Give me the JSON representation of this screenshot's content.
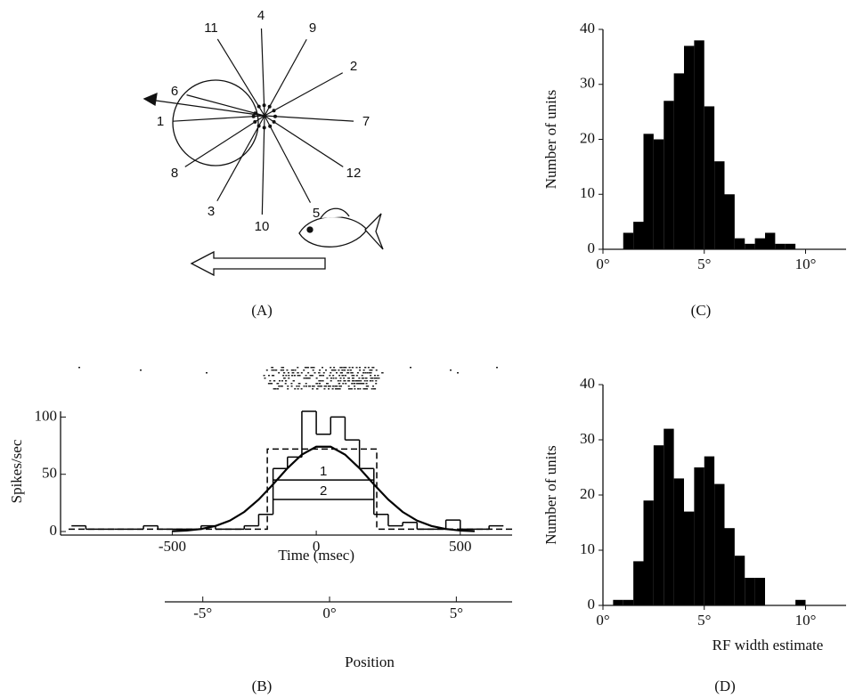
{
  "panel_a": {
    "labels": [
      "1",
      "2",
      "3",
      "4",
      "5",
      "6",
      "7",
      "8",
      "9",
      "10",
      "11",
      "12"
    ],
    "caption": "(A)"
  },
  "chart_data": [
    {
      "type": "histogram",
      "caption": "(C)",
      "ylabel": "Number of units",
      "color": "#000000",
      "bins": [
        1.0,
        1.5,
        2.0,
        2.5,
        3.0,
        3.5,
        4.0,
        4.5,
        5.0,
        5.5,
        6.0,
        6.5,
        7.0,
        7.5,
        8.0,
        8.5,
        9.0,
        9.5
      ],
      "counts": [
        3,
        5,
        21,
        20,
        27,
        32,
        37,
        38,
        26,
        16,
        10,
        2,
        1,
        2,
        3,
        1,
        1
      ],
      "xlim": [
        0,
        12
      ],
      "ylim": [
        0,
        40
      ],
      "xticks": [
        {
          "value": 0,
          "label": "0°"
        },
        {
          "value": 5,
          "label": "5°"
        },
        {
          "value": 10,
          "label": "10°"
        }
      ],
      "yticks": [
        0,
        10,
        20,
        30,
        40
      ]
    },
    {
      "type": "histogram",
      "caption": "(D)",
      "ylabel": "Number of units",
      "xlabel": "RF width estimate",
      "color": "#000000",
      "bins": [
        0.5,
        1.0,
        1.5,
        2.0,
        2.5,
        3.0,
        3.5,
        4.0,
        4.5,
        5.0,
        5.5,
        6.0,
        6.5,
        7.0,
        7.5,
        8.0,
        8.5,
        9.0,
        9.5,
        10.0
      ],
      "counts": [
        1,
        1,
        8,
        19,
        29,
        32,
        23,
        17,
        25,
        27,
        22,
        14,
        9,
        5,
        5,
        0,
        0,
        0,
        1
      ],
      "xlim": [
        0,
        12
      ],
      "ylim": [
        0,
        40
      ],
      "xticks": [
        {
          "value": 0,
          "label": "0°"
        },
        {
          "value": 5,
          "label": "5°"
        },
        {
          "value": 10,
          "label": "10°"
        }
      ],
      "yticks": [
        0,
        10,
        20,
        30,
        40
      ]
    },
    {
      "type": "line",
      "caption": "(B)",
      "ylabel": "Spikes/sec",
      "xlabel": "Time (msec)",
      "x2label": "Position",
      "xlim": [
        -860,
        680
      ],
      "ylim": [
        0,
        105
      ],
      "xticks": [
        -500,
        0,
        500
      ],
      "yticks": [
        0,
        50,
        100
      ],
      "x2lim": [
        -6.5,
        7.2
      ],
      "x2ticks": [
        {
          "value": -5,
          "label": "-5°"
        },
        {
          "value": 0,
          "label": "0°"
        },
        {
          "value": 5,
          "label": "5°"
        }
      ],
      "color": "#000000",
      "series": [
        {
          "style": "step",
          "bins": [
            -850,
            -800,
            -750,
            -700,
            -650,
            -600,
            -550,
            -500,
            -450,
            -400,
            -350,
            -300,
            -250,
            -200,
            -150,
            -100,
            -50,
            0,
            50,
            100,
            150,
            200,
            250,
            300,
            350,
            400,
            450,
            500,
            550,
            600,
            650
          ],
          "values": [
            5,
            2,
            2,
            2,
            2,
            5,
            2,
            2,
            2,
            5,
            2,
            2,
            5,
            15,
            55,
            65,
            105,
            85,
            100,
            80,
            55,
            15,
            5,
            8,
            2,
            2,
            10,
            2,
            2,
            5
          ]
        },
        {
          "style": "smooth",
          "x": [
            -500,
            -450,
            -400,
            -350,
            -300,
            -250,
            -200,
            -150,
            -100,
            -50,
            0,
            50,
            100,
            150,
            200,
            250,
            300,
            350,
            400,
            450,
            500,
            550
          ],
          "values": [
            0.3,
            0.9,
            2.2,
            4.8,
            9.5,
            17.1,
            27.9,
            41.2,
            55.3,
            67.2,
            74.1,
            74.1,
            67.2,
            55.3,
            41.2,
            27.9,
            17.1,
            9.5,
            4.8,
            2.2,
            0.9,
            0.3
          ]
        },
        {
          "style": "dashed",
          "x": [
            -860,
            -170,
            -170,
            210,
            210,
            680
          ],
          "values": [
            2,
            2,
            72,
            72,
            2,
            2
          ]
        },
        {
          "name": "1",
          "style": "solid",
          "x": [
            -150,
            200
          ],
          "values": [
            45,
            45
          ]
        },
        {
          "name": "2",
          "style": "solid",
          "x": [
            -150,
            200
          ],
          "values": [
            28,
            28
          ]
        }
      ]
    }
  ]
}
